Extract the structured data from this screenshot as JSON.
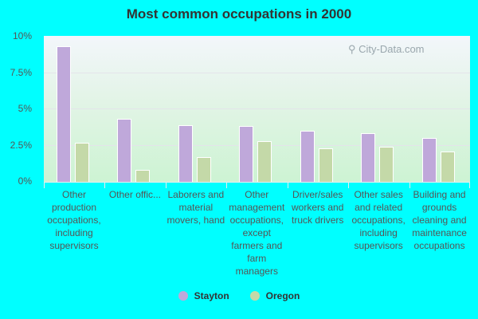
{
  "title": "Most common occupations in 2000",
  "watermark": "City-Data.com",
  "colors": {
    "stayton": "#bfa8da",
    "oregon": "#c4d9a8",
    "background": "#00ffff"
  },
  "y_ticks": [
    "10%",
    "7.5%",
    "5%",
    "2.5%",
    "0%"
  ],
  "legend": [
    {
      "name": "Stayton",
      "color": "#bfa8da"
    },
    {
      "name": "Oregon",
      "color": "#c4d9a8"
    }
  ],
  "chart_data": {
    "type": "bar",
    "title": "Most common occupations in 2000",
    "xlabel": "",
    "ylabel": "",
    "ylim": [
      0,
      10
    ],
    "y_tick_labels": [
      "0%",
      "2.5%",
      "5%",
      "7.5%",
      "10%"
    ],
    "grid": true,
    "legend_position": "bottom",
    "categories": [
      "Other production occupations, including supervisors",
      "Other offic...",
      "Laborers and material movers, hand",
      "Other management occupations, except farmers and farm managers",
      "Driver/sales workers and truck drivers",
      "Other sales and related occupations, including supervisors",
      "Building and grounds cleaning and maintenance occupations"
    ],
    "series": [
      {
        "name": "Stayton",
        "values": [
          9.3,
          4.3,
          3.9,
          3.85,
          3.5,
          3.35,
          3.0
        ]
      },
      {
        "name": "Oregon",
        "values": [
          2.7,
          0.8,
          1.7,
          2.8,
          2.3,
          2.4,
          2.1
        ]
      }
    ]
  },
  "x_labels": [
    "Other production occupations, including supervisors",
    "Other offic...",
    "Laborers and material movers, hand",
    "Other management occupations, except farmers and farm managers",
    "Driver/sales workers and truck drivers",
    "Other sales and related occupations, including supervisors",
    "Building and grounds cleaning and maintenance occupations"
  ]
}
